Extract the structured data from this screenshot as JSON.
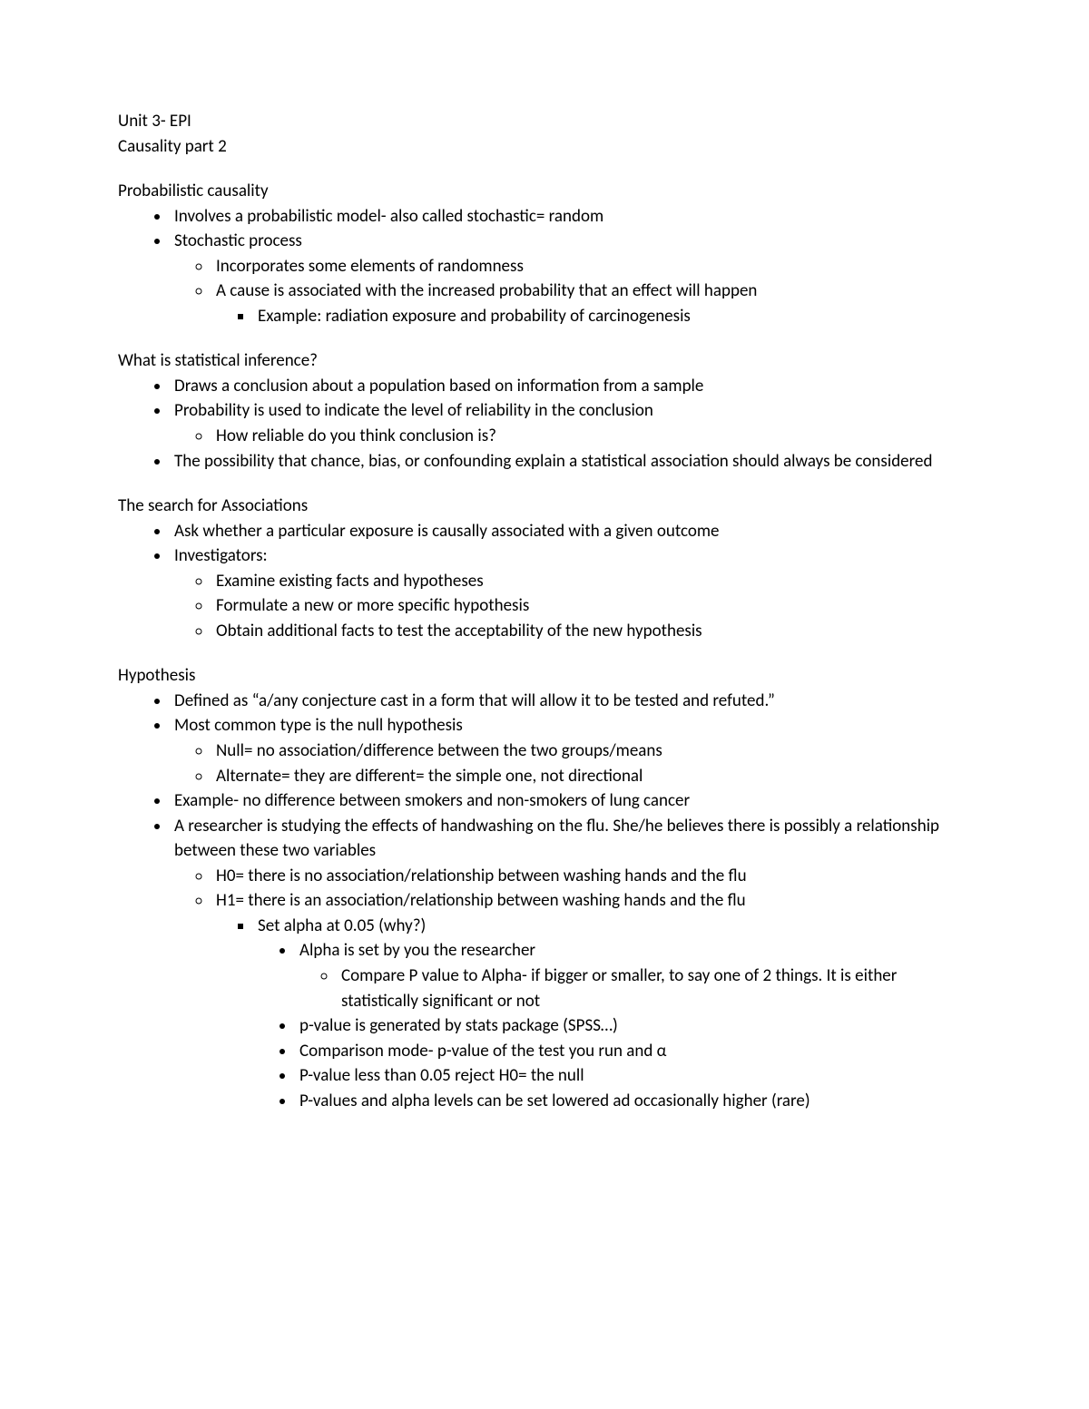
{
  "header": {
    "line1": "Unit 3- EPI",
    "line2": "Causality part 2"
  },
  "sections": [
    {
      "title": "Probabilistic causality",
      "items": [
        {
          "text": "Involves a probabilistic model- also called stochastic= random"
        },
        {
          "text": "Stochastic process",
          "items": [
            {
              "text": "Incorporates some elements of randomness"
            },
            {
              "text": "A cause is associated with the increased probability that an effect will happen",
              "items": [
                {
                  "text": "Example: radiation exposure and probability of carcinogenesis"
                }
              ]
            }
          ]
        }
      ]
    },
    {
      "title": "What is statistical inference?",
      "items": [
        {
          "text": "Draws a conclusion about a population based on information from a sample"
        },
        {
          "text": "Probability is used to indicate the level of reliability in the conclusion",
          "items": [
            {
              "text": "How reliable do you think conclusion is?"
            }
          ]
        },
        {
          "text": "The possibility that chance, bias, or confounding explain a statistical association should always be considered"
        }
      ]
    },
    {
      "title": "The search for Associations",
      "items": [
        {
          "text": "Ask whether a particular exposure is causally associated with a given outcome"
        },
        {
          "text": "Investigators:",
          "items": [
            {
              "text": "Examine existing facts and hypotheses"
            },
            {
              "text": "Formulate a new or more specific hypothesis"
            },
            {
              "text": "Obtain additional facts to test the acceptability of the new hypothesis"
            }
          ]
        }
      ]
    },
    {
      "title": "Hypothesis",
      "items": [
        {
          "text": "Defined as “a/any conjecture cast in a form that will allow it to be tested and refuted.”"
        },
        {
          "text": "Most common type is the null hypothesis",
          "items": [
            {
              "text": "Null= no association/difference between the two groups/means"
            },
            {
              "text": "Alternate= they are different= the simple one, not directional"
            }
          ]
        },
        {
          "text": "Example- no difference between smokers and non-smokers of lung cancer"
        },
        {
          "text": "A researcher is studying the effects of handwashing on the flu. She/he believes there is possibly a relationship between these two variables",
          "items": [
            {
              "text": "H0= there is no association/relationship between washing hands and the flu"
            },
            {
              "text": "H1= there is an association/relationship between washing hands and the flu",
              "items": [
                {
                  "text": "Set alpha at 0.05 (why?)",
                  "items": [
                    {
                      "text": "Alpha is set by you the researcher",
                      "items": [
                        {
                          "text": "Compare P value to Alpha- if bigger or smaller, to say one of 2 things. It is either statistically significant or not"
                        }
                      ]
                    },
                    {
                      "text": "p-value is generated by stats package (SPSS…)"
                    },
                    {
                      "text": "Comparison mode- p-value of the test you run and α"
                    },
                    {
                      "text": "P-value less than 0.05 reject H0= the null"
                    },
                    {
                      "text": "P-values and alpha levels can be set lowered ad occasionally higher (rare)"
                    }
                  ]
                }
              ]
            }
          ]
        }
      ]
    }
  ]
}
